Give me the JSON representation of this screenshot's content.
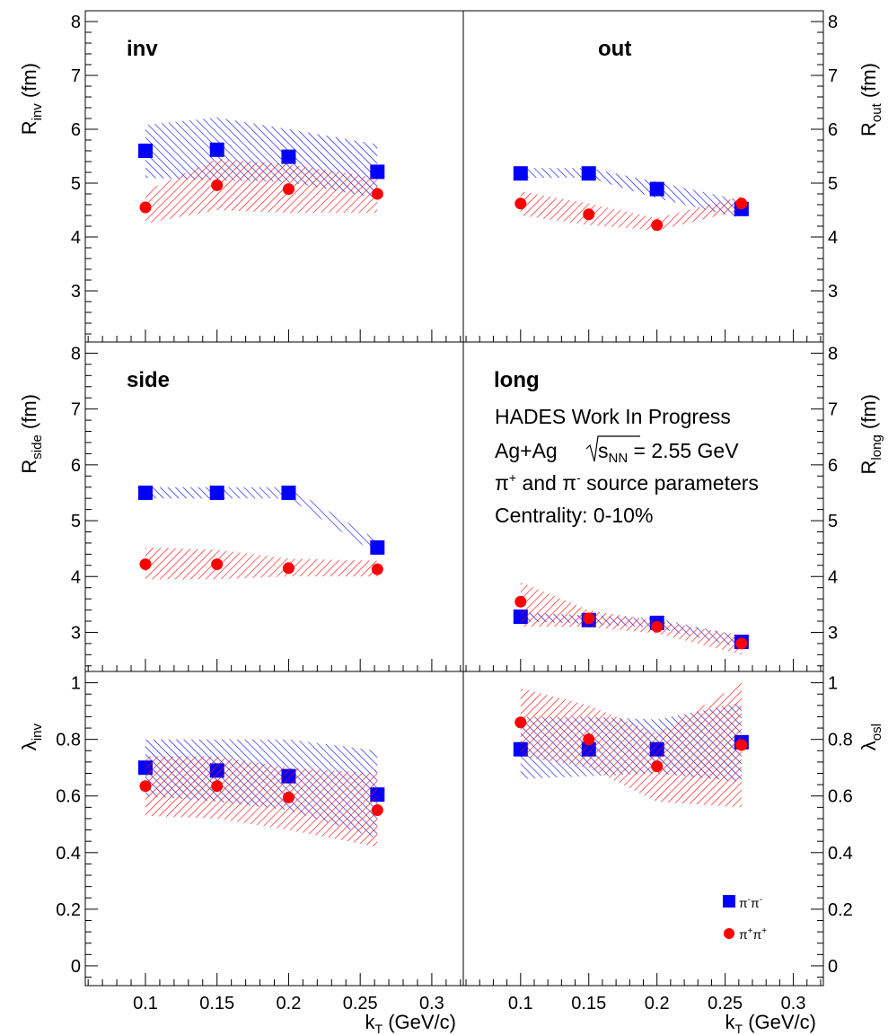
{
  "chart_data": {
    "type": "scatter",
    "x_axis_label": {
      "main": "k",
      "sub": "T",
      "rest": " (GeV/c)"
    },
    "x_ticks": [
      "0.1",
      "0.15",
      "0.2",
      "0.25",
      "0.3"
    ],
    "x_range": [
      0.058,
      0.322
    ],
    "legend": {
      "pim": {
        "main": "π",
        "sup1": "-",
        "mid": "π",
        "sup2": "-"
      },
      "pip": {
        "main": "π",
        "sup1": "+",
        "mid": "π",
        "sup2": "+"
      }
    },
    "info": {
      "line1": "HADES Work In Progress",
      "line2_a": "Ag+Ag",
      "line2_b": "s",
      "line2_sub": "NN",
      "line2_c": " = 2.55 GeV",
      "line3_a": "π",
      "line3_sup1": "+",
      "line3_b": " and π",
      "line3_sup2": "-",
      "line3_c": " source parameters",
      "line4": "Centrality: 0-10%"
    },
    "colors": {
      "pim": "#0000ff",
      "pip": "#ff0000"
    },
    "panels": [
      {
        "id": "inv",
        "tag": "inv",
        "ylabel": {
          "main": "R",
          "sub": "inv",
          "rest": " (fm)"
        },
        "ylabel_side": "left",
        "yrange": [
          2.05,
          8.2
        ],
        "yticks": [
          "3",
          "4",
          "5",
          "6",
          "7",
          "8"
        ],
        "series": [
          {
            "key": "pim",
            "x": [
              0.1,
              0.15,
              0.2,
              0.262
            ],
            "y": [
              5.6,
              5.62,
              5.49,
              5.21
            ],
            "band_lo": [
              5.1,
              5.05,
              5.02,
              4.72
            ],
            "band_hi": [
              6.08,
              6.22,
              6.0,
              5.72
            ]
          },
          {
            "key": "pip",
            "x": [
              0.1,
              0.15,
              0.2,
              0.262
            ],
            "y": [
              4.55,
              4.96,
              4.89,
              4.8
            ],
            "band_lo": [
              4.25,
              4.5,
              4.45,
              4.45
            ],
            "band_hi": [
              4.85,
              5.45,
              5.35,
              5.1
            ]
          }
        ]
      },
      {
        "id": "out",
        "tag": "out",
        "ylabel": {
          "main": "R",
          "sub": "out",
          "rest": " (fm)"
        },
        "ylabel_side": "right",
        "yrange": [
          2.05,
          8.2
        ],
        "yticks": [
          "3",
          "4",
          "5",
          "6",
          "7",
          "8"
        ],
        "series": [
          {
            "key": "pim",
            "x": [
              0.1,
              0.15,
              0.2,
              0.262
            ],
            "y": [
              5.18,
              5.18,
              4.89,
              4.52
            ],
            "band_lo": [
              5.1,
              5.1,
              4.72,
              4.35
            ],
            "band_hi": [
              5.28,
              5.28,
              5.02,
              4.68
            ]
          },
          {
            "key": "pip",
            "x": [
              0.1,
              0.15,
              0.2,
              0.262
            ],
            "y": [
              4.62,
              4.42,
              4.22,
              4.62
            ],
            "band_lo": [
              4.4,
              4.22,
              4.12,
              4.5
            ],
            "band_hi": [
              4.85,
              4.62,
              4.35,
              4.75
            ]
          }
        ]
      },
      {
        "id": "side",
        "tag": "side",
        "ylabel": {
          "main": "R",
          "sub": "side",
          "rest": " (fm)"
        },
        "ylabel_side": "left",
        "yrange": [
          2.3,
          8.2
        ],
        "yticks": [
          "3",
          "4",
          "5",
          "6",
          "7",
          "8"
        ],
        "series": [
          {
            "key": "pim",
            "x": [
              0.1,
              0.15,
              0.2,
              0.262
            ],
            "y": [
              5.5,
              5.5,
              5.5,
              4.52
            ],
            "band_lo": [
              5.4,
              5.4,
              5.4,
              4.4
            ],
            "band_hi": [
              5.6,
              5.6,
              5.6,
              4.65
            ]
          },
          {
            "key": "pip",
            "x": [
              0.1,
              0.15,
              0.2,
              0.262
            ],
            "y": [
              4.22,
              4.22,
              4.15,
              4.13
            ],
            "band_lo": [
              3.95,
              3.95,
              4.0,
              4.0
            ],
            "band_hi": [
              4.52,
              4.48,
              4.32,
              4.28
            ]
          }
        ]
      },
      {
        "id": "long",
        "tag": "long",
        "ylabel": {
          "main": "R",
          "sub": "long",
          "rest": " (fm)"
        },
        "ylabel_side": "right",
        "yrange": [
          2.3,
          8.2
        ],
        "yticks": [
          "3",
          "4",
          "5",
          "6",
          "7",
          "8"
        ],
        "series": [
          {
            "key": "pim",
            "x": [
              0.1,
              0.15,
              0.2,
              0.262
            ],
            "y": [
              3.28,
              3.22,
              3.17,
              2.83
            ],
            "band_lo": [
              3.2,
              3.15,
              3.08,
              2.72
            ],
            "band_hi": [
              3.36,
              3.3,
              3.25,
              2.93
            ]
          },
          {
            "key": "pip",
            "x": [
              0.1,
              0.15,
              0.2,
              0.262
            ],
            "y": [
              3.55,
              3.25,
              3.1,
              2.8
            ],
            "band_lo": [
              3.1,
              3.1,
              2.98,
              2.6
            ],
            "band_hi": [
              3.9,
              3.4,
              3.2,
              2.95
            ]
          }
        ]
      },
      {
        "id": "lambda_inv",
        "tag": "",
        "ylabel": {
          "main": "λ",
          "sub": "inv",
          "rest": ""
        },
        "ylabel_side": "left",
        "yrange": [
          -0.07,
          1.04
        ],
        "yticks": [
          "0",
          "0.2",
          "0.4",
          "0.6",
          "0.8",
          "1"
        ],
        "series": [
          {
            "key": "pim",
            "x": [
              0.1,
              0.15,
              0.2,
              0.262
            ],
            "y": [
              0.7,
              0.69,
              0.67,
              0.605
            ],
            "band_lo": [
              0.6,
              0.58,
              0.55,
              0.45
            ],
            "band_hi": [
              0.8,
              0.8,
              0.8,
              0.76
            ]
          },
          {
            "key": "pip",
            "x": [
              0.1,
              0.15,
              0.2,
              0.262
            ],
            "y": [
              0.635,
              0.635,
              0.595,
              0.55
            ],
            "band_lo": [
              0.53,
              0.52,
              0.48,
              0.42
            ],
            "band_hi": [
              0.74,
              0.74,
              0.7,
              0.68
            ]
          }
        ]
      },
      {
        "id": "lambda_osl",
        "tag": "",
        "ylabel": {
          "main": "λ",
          "sub": "osl",
          "rest": ""
        },
        "ylabel_side": "right",
        "yrange": [
          -0.07,
          1.04
        ],
        "yticks": [
          "0",
          "0.2",
          "0.4",
          "0.6",
          "0.8",
          "1"
        ],
        "series": [
          {
            "key": "pim",
            "x": [
              0.1,
              0.15,
              0.2,
              0.262
            ],
            "y": [
              0.765,
              0.765,
              0.765,
              0.79
            ],
            "band_lo": [
              0.66,
              0.67,
              0.68,
              0.65
            ],
            "band_hi": [
              0.88,
              0.88,
              0.87,
              0.93
            ]
          },
          {
            "key": "pip",
            "x": [
              0.1,
              0.15,
              0.2,
              0.262
            ],
            "y": [
              0.86,
              0.8,
              0.705,
              0.78
            ],
            "band_lo": [
              0.74,
              0.7,
              0.58,
              0.56
            ],
            "band_hi": [
              0.98,
              0.92,
              0.82,
              1.0
            ]
          }
        ]
      }
    ]
  }
}
